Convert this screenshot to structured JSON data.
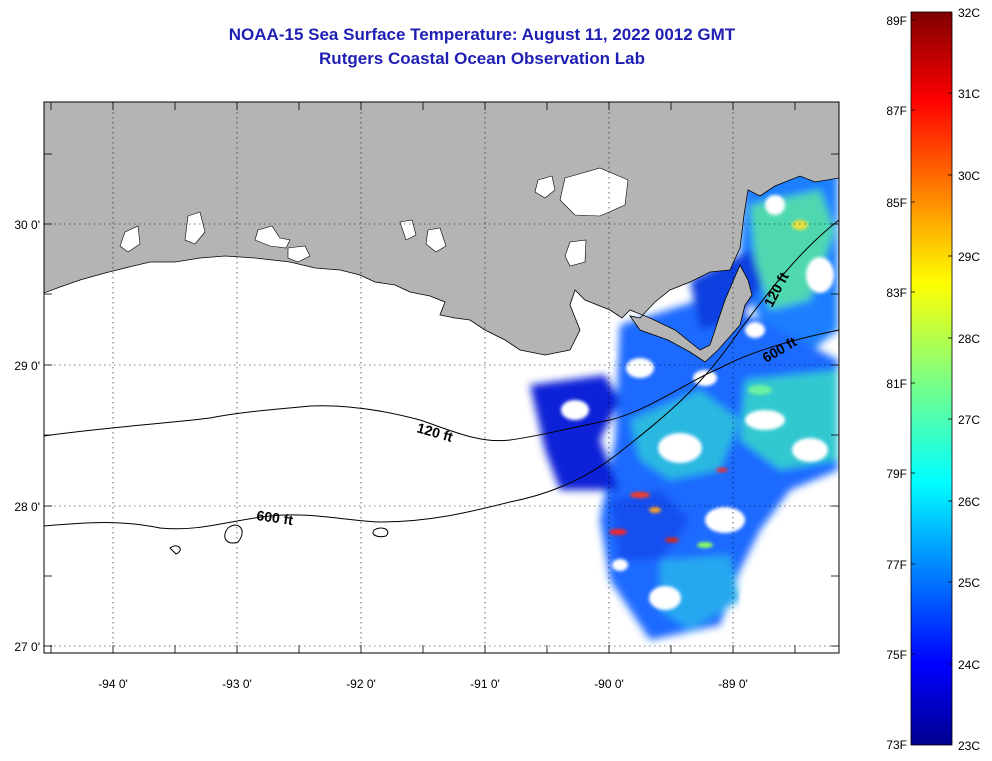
{
  "header": {
    "title": "NOAA-15 Sea Surface Temperature:  August 11, 2022 0012 GMT",
    "subtitle": "Rutgers Coastal Ocean Observation Lab"
  },
  "map": {
    "lon_labels": [
      "-94 0'",
      "-93 0'",
      "-92 0'",
      "-91 0'",
      "-90 0'",
      "-89 0'"
    ],
    "lat_labels": [
      "30 0'",
      "29 0'",
      "28 0'",
      "27 0'"
    ],
    "lon_range": [
      -94.5,
      -88.2
    ],
    "lat_range": [
      26.97,
      30.85
    ],
    "contours": [
      {
        "label": "120 ft"
      },
      {
        "label": "600 ft"
      },
      {
        "label": "120 ft"
      },
      {
        "label": "600 ft"
      }
    ],
    "colors": {
      "land": "#b4b4b4",
      "border": "#000000",
      "lake": "#ffffff"
    }
  },
  "colorbar": {
    "fahrenheit_labels": [
      "89F",
      "87F",
      "85F",
      "83F",
      "81F",
      "79F",
      "77F",
      "75F",
      "73F"
    ],
    "celsius_labels": [
      "32C",
      "31C",
      "30C",
      "29C",
      "28C",
      "27C",
      "26C",
      "25C",
      "24C",
      "23C"
    ],
    "range_c": [
      23,
      32
    ]
  }
}
